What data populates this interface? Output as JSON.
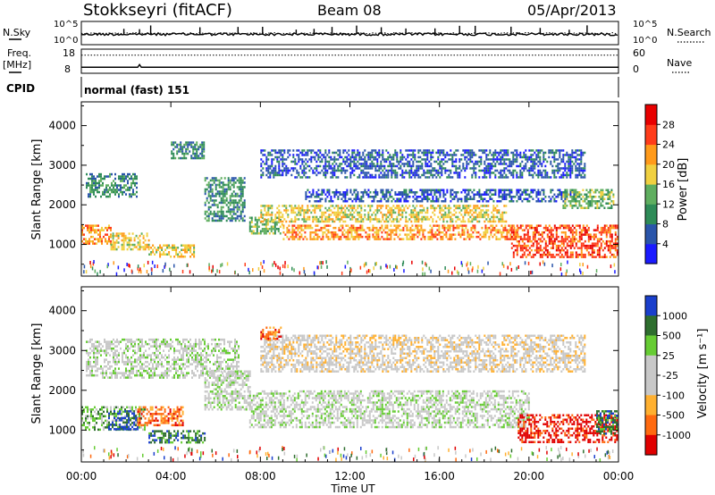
{
  "header": {
    "station": "Stokkseyri (fitACF)",
    "beam": "Beam 08",
    "date": "05/Apr/2013"
  },
  "side_labels": {
    "nsky": "N.Sky",
    "freq_1": "Freq.",
    "freq_2": "[MHz]",
    "cpid": "CPID",
    "nsearch": "N.Search",
    "nave": "Nave"
  },
  "cpid_value": "normal (fast) 151",
  "chart_data": [
    {
      "type": "line",
      "panel": "noise",
      "left_ticks": [
        "10^5",
        "10^0"
      ],
      "right_ticks": [
        "10^5",
        "10^0"
      ],
      "series": [
        {
          "name": "N.Sky",
          "style": "solid",
          "baseline_fraction": 0.55,
          "spike_times_hours": [
            1.9,
            2.6,
            3.1,
            5.3,
            7.0,
            8.1,
            9.6,
            10.4,
            11.2,
            12.3,
            13.4,
            14.5,
            15.8,
            16.9,
            17.6,
            19.2,
            20.5,
            21.8,
            22.6
          ]
        },
        {
          "name": "N.Search",
          "style": "dotted",
          "baseline_fraction": 0.55
        }
      ]
    },
    {
      "type": "line",
      "panel": "frequency",
      "left_ticks": [
        "18",
        "8"
      ],
      "right_ticks": [
        "60",
        "0"
      ],
      "series": [
        {
          "name": "Freq.",
          "unit": "MHz",
          "style": "solid",
          "value": 10.5,
          "blip_time_hours": 2.6
        },
        {
          "name": "Nave",
          "style": "dotted",
          "value": 45
        }
      ]
    },
    {
      "type": "heatmap",
      "panel": "power",
      "x_label": "",
      "y_label": "Slant Range [km]",
      "x_range_hours": [
        0,
        24
      ],
      "y_range_km": [
        200,
        4600
      ],
      "y_ticks": [
        "1000",
        "2000",
        "3000",
        "4000"
      ],
      "colorbar_label": "Power [dB]",
      "colorbar_ticks": [
        "4",
        "8",
        "12",
        "16",
        "20",
        "24",
        "28"
      ],
      "colorbar_colors": [
        "#1a1aff",
        "#2a55aa",
        "#2e8b57",
        "#5fae5f",
        "#f0d040",
        "#ff9a1a",
        "#ff3c1a",
        "#e80000"
      ],
      "echo_regions": [
        {
          "t": [
            0.0,
            1.3
          ],
          "r": [
            1000,
            1500
          ],
          "level": 5
        },
        {
          "t": [
            0.2,
            2.5
          ],
          "r": [
            2200,
            2800
          ],
          "level": 2
        },
        {
          "t": [
            1.3,
            3.0
          ],
          "r": [
            900,
            1300
          ],
          "level": 4
        },
        {
          "t": [
            3.0,
            5.0
          ],
          "r": [
            700,
            1000
          ],
          "level": 4
        },
        {
          "t": [
            4.0,
            5.5
          ],
          "r": [
            3200,
            3600
          ],
          "level": 2
        },
        {
          "t": [
            5.5,
            7.3
          ],
          "r": [
            1600,
            2700
          ],
          "level": 2
        },
        {
          "t": [
            7.5,
            9.0
          ],
          "r": [
            1300,
            1700
          ],
          "level": 3
        },
        {
          "t": [
            8.0,
            19.0
          ],
          "r": [
            1600,
            2000
          ],
          "level": 4
        },
        {
          "t": [
            9.0,
            19.5
          ],
          "r": [
            1150,
            1500
          ],
          "level": 5
        },
        {
          "t": [
            8.0,
            22.5
          ],
          "r": [
            2700,
            3400
          ],
          "level": 1
        },
        {
          "t": [
            10.0,
            22.0
          ],
          "r": [
            2100,
            2400
          ],
          "level": 1
        },
        {
          "t": [
            19.2,
            24.0
          ],
          "r": [
            700,
            1500
          ],
          "level": 6
        },
        {
          "t": [
            21.5,
            23.8
          ],
          "r": [
            1900,
            2400
          ],
          "level": 3
        }
      ]
    },
    {
      "type": "heatmap",
      "panel": "velocity",
      "x_label": "Time UT",
      "y_label": "Slant Range [km]",
      "x_range_hours": [
        0,
        24
      ],
      "y_range_km": [
        200,
        4600
      ],
      "x_ticks": [
        "00:00",
        "04:00",
        "08:00",
        "12:00",
        "16:00",
        "20:00",
        "00:00"
      ],
      "y_ticks": [
        "1000",
        "2000",
        "3000",
        "4000"
      ],
      "colorbar_label": "Velocity [m s⁻¹]",
      "colorbar_ticks": [
        "1000",
        "500",
        "25",
        "-25",
        "-100",
        "-500",
        "-1000"
      ],
      "colorbar_colors": [
        "#1a3fcc",
        "#2e6e2e",
        "#66cc33",
        "#c8c8c8",
        "#c8c8c8",
        "#ffb030",
        "#ff6a10",
        "#e00000"
      ],
      "echo_regions": [
        {
          "t": [
            0.0,
            2.8
          ],
          "r": [
            1000,
            1600
          ],
          "level": 2
        },
        {
          "t": [
            1.2,
            2.5
          ],
          "r": [
            1000,
            1500
          ],
          "level": 0
        },
        {
          "t": [
            2.5,
            4.5
          ],
          "r": [
            1100,
            1600
          ],
          "level": 6
        },
        {
          "t": [
            3.0,
            5.5
          ],
          "r": [
            700,
            1000
          ],
          "level": 1
        },
        {
          "t": [
            0.2,
            7.0
          ],
          "r": [
            2300,
            3300
          ],
          "level": 3
        },
        {
          "t": [
            5.5,
            7.5
          ],
          "r": [
            1500,
            2500
          ],
          "level": 3
        },
        {
          "t": [
            7.5,
            20.0
          ],
          "r": [
            1100,
            2000
          ],
          "level": 3
        },
        {
          "t": [
            8.0,
            22.5
          ],
          "r": [
            2500,
            3400
          ],
          "level": 4
        },
        {
          "t": [
            8.0,
            9.0
          ],
          "r": [
            3300,
            3600
          ],
          "level": 6
        },
        {
          "t": [
            19.5,
            24.0
          ],
          "r": [
            700,
            1400
          ],
          "level": 7
        },
        {
          "t": [
            23.0,
            24.0
          ],
          "r": [
            900,
            1500
          ],
          "level": 1
        }
      ]
    }
  ]
}
